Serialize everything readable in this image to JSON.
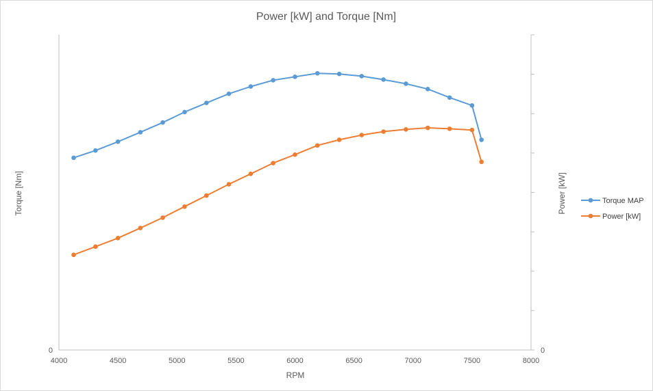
{
  "chart_data": {
    "type": "line",
    "title": "Power [kW] and Torque [Nm]",
    "xlabel": "RPM",
    "ylabel_left": "Torque [Nm]",
    "ylabel_right": "Power [kW]",
    "xlim": [
      4000,
      8000
    ],
    "x_ticks": [
      4000,
      4500,
      5000,
      5500,
      6000,
      6500,
      7000,
      7500,
      8000
    ],
    "y_left_tick_label": "0",
    "y_right_tick_label": "0",
    "legend_position": "right",
    "grid": false,
    "series": [
      {
        "name": "Torque MAP",
        "color": "#5b9bd5",
        "axis": "left",
        "x": [
          4125,
          4310,
          4500,
          4690,
          4880,
          5065,
          5250,
          5440,
          5625,
          5815,
          6000,
          6190,
          6375,
          6565,
          6750,
          6940,
          7125,
          7310,
          7500,
          7580
        ],
        "y": [
          0.61,
          0.633,
          0.661,
          0.691,
          0.722,
          0.755,
          0.784,
          0.813,
          0.836,
          0.856,
          0.867,
          0.878,
          0.876,
          0.869,
          0.858,
          0.845,
          0.828,
          0.801,
          0.776,
          0.667
        ]
      },
      {
        "name": "Power [kW]",
        "color": "#ed7d31",
        "axis": "right",
        "x": [
          4125,
          4310,
          4500,
          4690,
          4880,
          5065,
          5250,
          5440,
          5625,
          5815,
          6000,
          6190,
          6375,
          6565,
          6750,
          6940,
          7125,
          7310,
          7500,
          7580
        ],
        "y": [
          0.302,
          0.328,
          0.355,
          0.387,
          0.42,
          0.455,
          0.49,
          0.526,
          0.559,
          0.593,
          0.62,
          0.649,
          0.667,
          0.682,
          0.693,
          0.7,
          0.705,
          0.702,
          0.698,
          0.597
        ]
      }
    ]
  }
}
